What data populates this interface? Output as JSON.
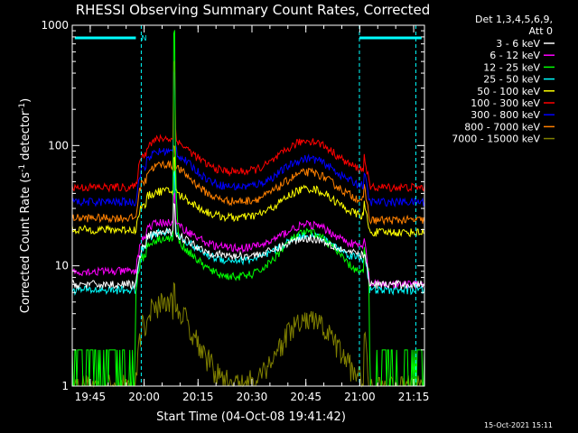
{
  "chart_data": {
    "type": "line",
    "title": "RHESSI Observing Summary Count Rates, Corrected",
    "xlabel": "Start Time (04-Oct-08 19:41:42)",
    "ylabel": "Corrected Count Rate (s",
    "ylabel_sup1": "-1",
    "ylabel_mid": " detector",
    "ylabel_sup2": "-1",
    "ylabel_end": ")",
    "footer": "15-Oct-2021 15:11",
    "y_scale": "log",
    "ylim": [
      1,
      1000
    ],
    "xlim_minutes": [
      -1.7,
      96.3
    ],
    "x_ticks": [
      {
        "m": 3.3,
        "label": "19:45"
      },
      {
        "m": 18.3,
        "label": "20:00"
      },
      {
        "m": 33.3,
        "label": "20:15"
      },
      {
        "m": 48.3,
        "label": "20:30"
      },
      {
        "m": 63.3,
        "label": "20:45"
      },
      {
        "m": 78.3,
        "label": "21:00"
      },
      {
        "m": 93.3,
        "label": "21:15"
      }
    ],
    "y_ticks": [
      {
        "v": 1,
        "label": "1"
      },
      {
        "v": 10,
        "label": "10"
      },
      {
        "v": 100,
        "label": "100"
      },
      {
        "v": 1000,
        "label": "1000"
      }
    ],
    "legend_header": [
      "Det 1,3,4,5,6,9,",
      "Att 0"
    ],
    "night_marks_minutes": [
      17.5,
      78.2,
      93.9
    ],
    "flag_bars": [
      {
        "label": "N",
        "from": -1.0,
        "to": 16.0
      },
      {
        "label": "",
        "from": 78.2,
        "to": 95.5
      }
    ],
    "flare_minutes": 26.7,
    "series": [
      {
        "name": "3 - 6 keV",
        "color": "#ffffff",
        "day1": 19,
        "night1": 7,
        "mid": 12,
        "day2": 17,
        "night2": 7,
        "spike": 35
      },
      {
        "name": "6 - 12 keV",
        "color": "#ff00ff",
        "day1": 23,
        "night1": 9,
        "mid": 14,
        "day2": 22,
        "night2": 7,
        "spike": 40
      },
      {
        "name": "12 - 25 keV",
        "color": "#00ff00",
        "day1": 17,
        "night1": 6,
        "mid": 8,
        "day2": 19,
        "night2": 8,
        "spike": 850
      },
      {
        "name": "25 - 50 keV",
        "color": "#00ffff",
        "day1": 19,
        "night1": 6.3,
        "mid": 11,
        "day2": 18,
        "night2": 6.3,
        "spike": 60
      },
      {
        "name": "50 - 100 keV",
        "color": "#ffff00",
        "day1": 42,
        "night1": 20,
        "mid": 25,
        "day2": 44,
        "night2": 19,
        "spike": 80
      },
      {
        "name": "100 - 300 keV",
        "color": "#ff0000",
        "day1": 115,
        "night1": 45,
        "mid": 60,
        "day2": 110,
        "night2": 45,
        "spike": 500
      },
      {
        "name": "300 - 800 keV",
        "color": "#0000ff",
        "day1": 90,
        "night1": 34,
        "mid": 45,
        "day2": 78,
        "night2": 34,
        "spike": 400
      },
      {
        "name": "800 - 7000 keV",
        "color": "#ff8000",
        "day1": 70,
        "night1": 25,
        "mid": 34,
        "day2": 60,
        "night2": 24,
        "spike": 100
      },
      {
        "name": "7000 - 15000 keV",
        "color": "#808000",
        "day1": 5,
        "night1": 1,
        "mid": 1,
        "day2": 3.5,
        "night2": 1,
        "spike": 6
      }
    ]
  }
}
